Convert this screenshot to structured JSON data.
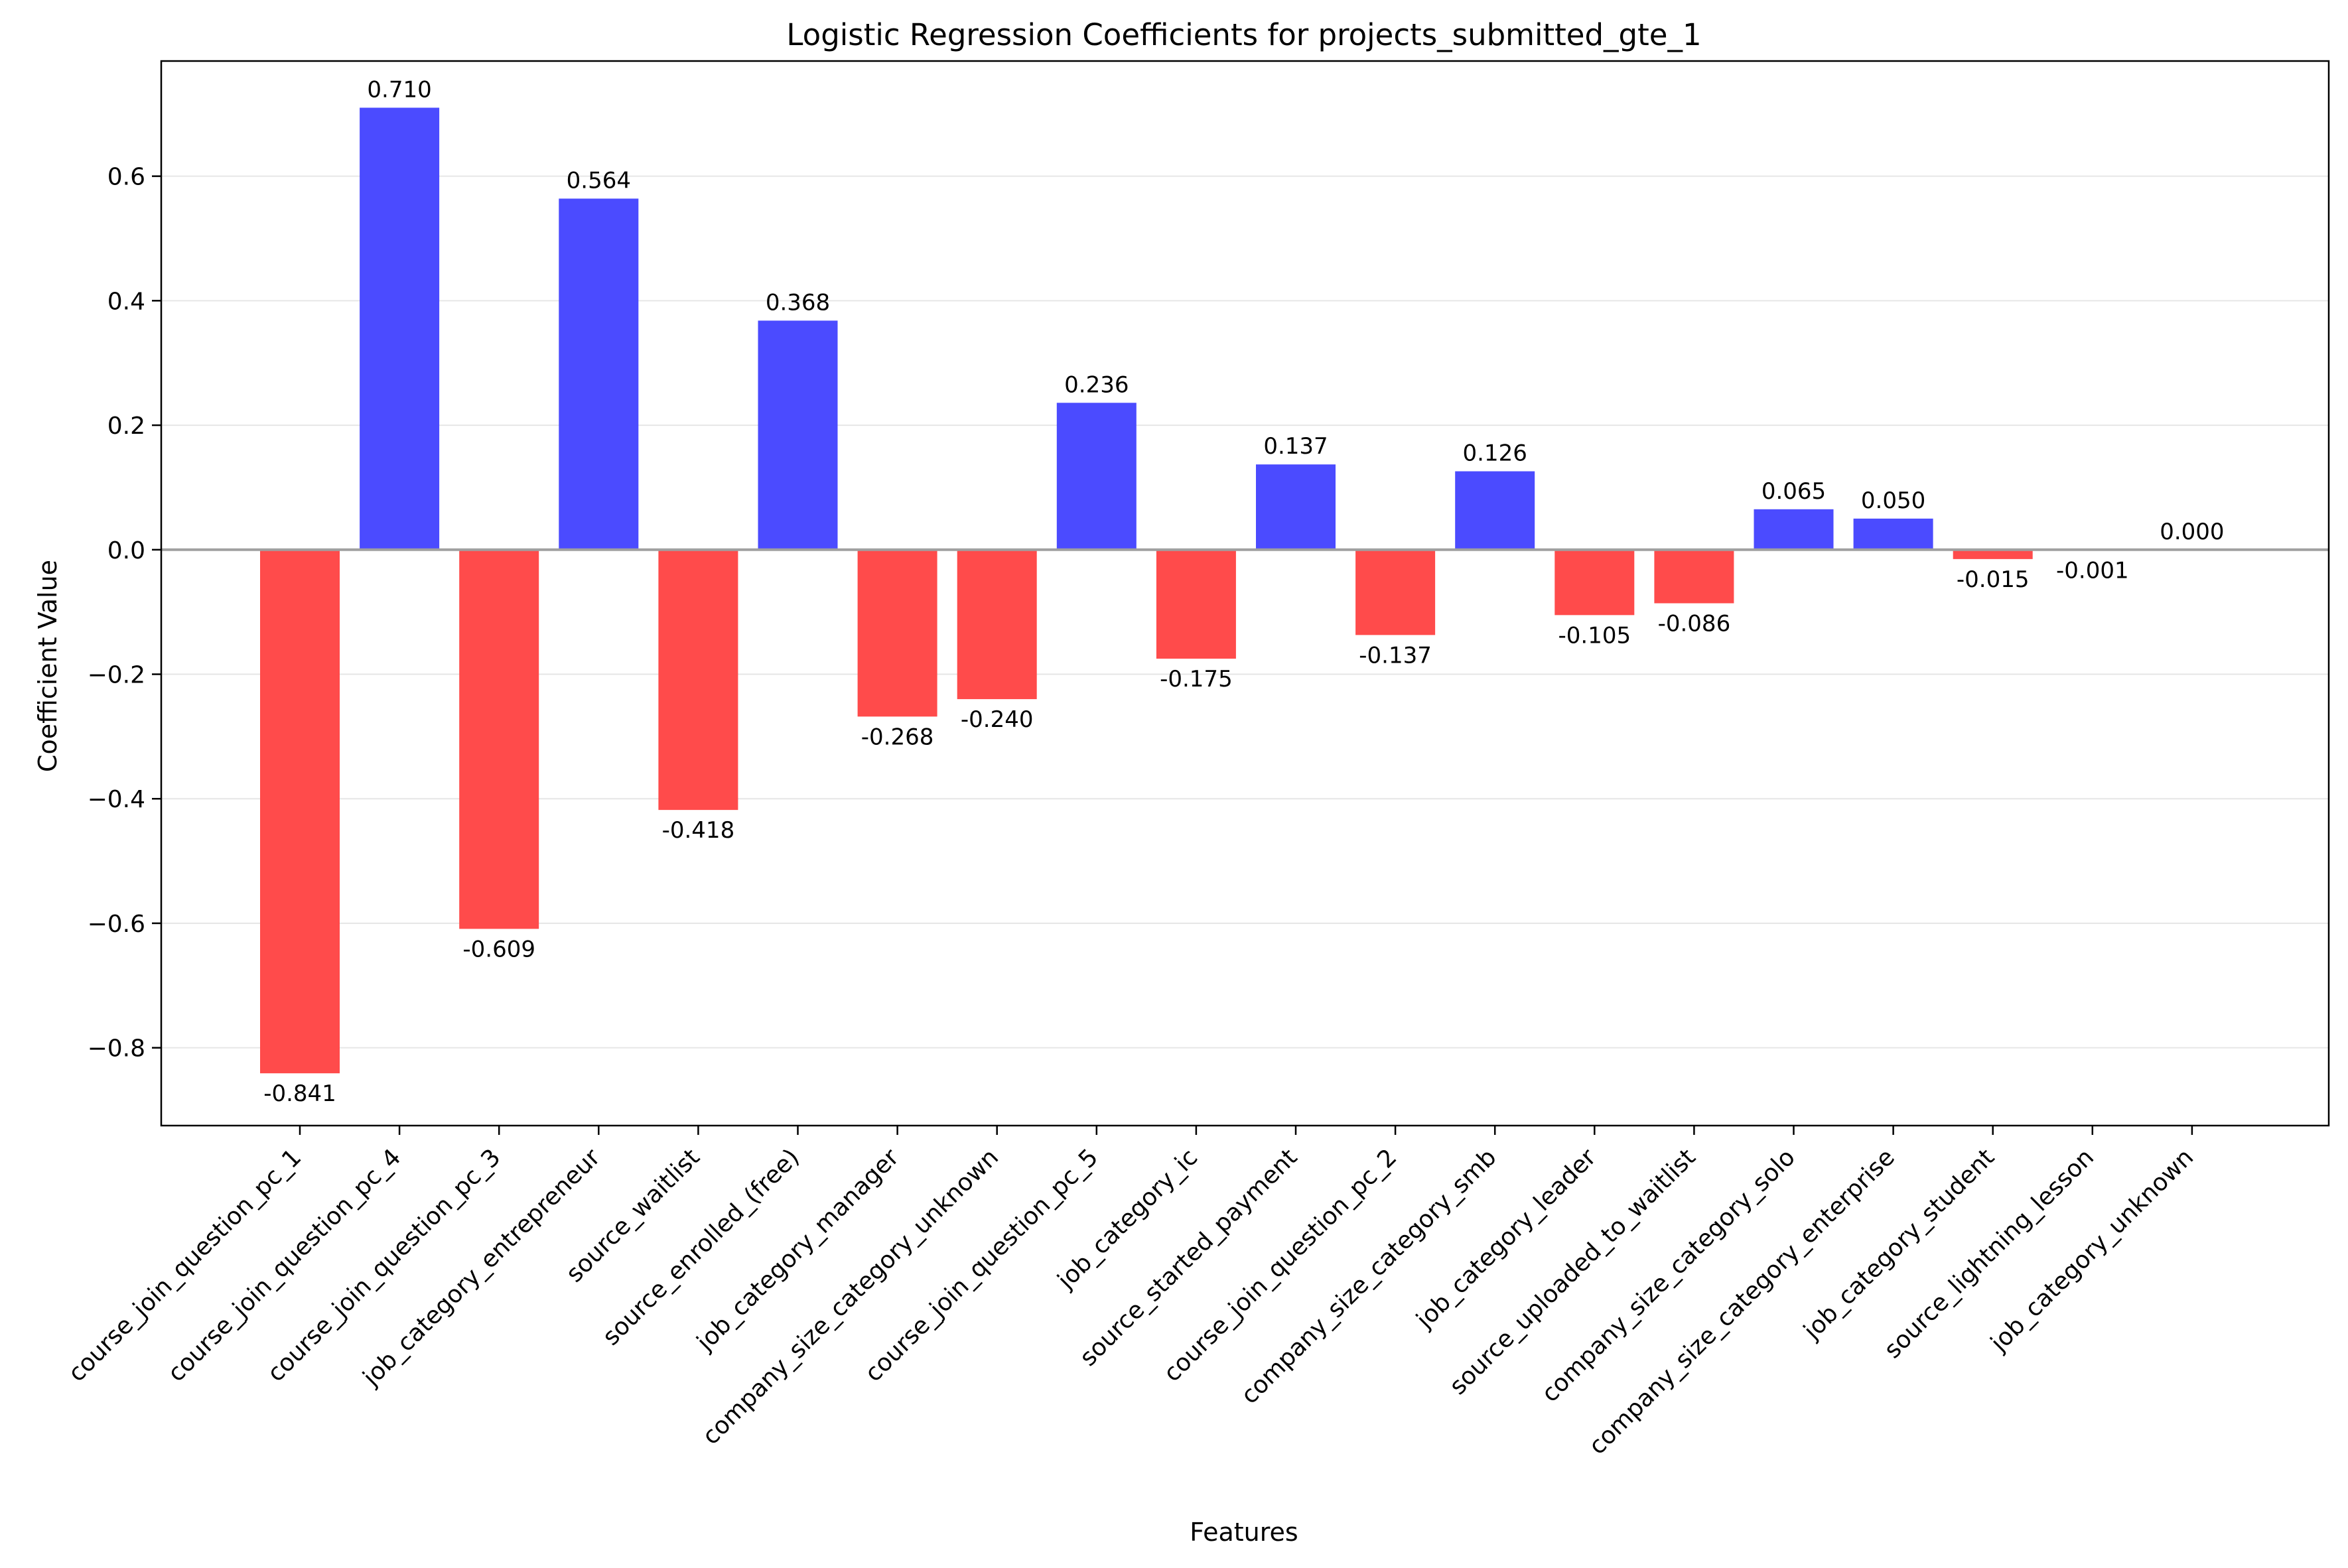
{
  "chart_data": {
    "type": "bar",
    "title": "Logistic Regression Coefficients for projects_submitted_gte_1",
    "xlabel": "Features",
    "ylabel": "Coefficient Value",
    "ylim": [
      -0.925,
      0.785
    ],
    "yticks": [
      -0.8,
      -0.6,
      -0.4,
      -0.2,
      0.0,
      0.2,
      0.4,
      0.6
    ],
    "ytick_labels": [
      "−0.8",
      "−0.6",
      "−0.4",
      "−0.2",
      "0.0",
      "0.2",
      "0.4",
      "0.6"
    ],
    "grid": "y",
    "colors": {
      "positive": "#4b4bff",
      "negative": "#ff4b4b",
      "zero_line": "#a0a0a0",
      "grid": "#e6e6e6"
    },
    "categories": [
      "course_join_question_pc_1",
      "course_join_question_pc_4",
      "course_join_question_pc_3",
      "job_category_entrepreneur",
      "source_waitlist",
      "source_enrolled_(free)",
      "job_category_manager",
      "company_size_category_unknown",
      "course_join_question_pc_5",
      "job_category_ic",
      "source_started_payment",
      "course_join_question_pc_2",
      "company_size_category_smb",
      "job_category_leader",
      "source_uploaded_to_waitlist",
      "company_size_category_solo",
      "company_size_category_enterprise",
      "job_category_student",
      "source_lightning_lesson",
      "job_category_unknown"
    ],
    "values": [
      -0.841,
      0.71,
      -0.609,
      0.564,
      -0.418,
      0.368,
      -0.268,
      -0.24,
      0.236,
      -0.175,
      0.137,
      -0.137,
      0.126,
      -0.105,
      -0.086,
      0.065,
      0.05,
      -0.015,
      -0.001,
      0.0
    ],
    "value_labels": [
      "-0.841",
      "0.710",
      "-0.609",
      "0.564",
      "-0.418",
      "0.368",
      "-0.268",
      "-0.240",
      "0.236",
      "-0.175",
      "0.137",
      "-0.137",
      "0.126",
      "-0.105",
      "-0.086",
      "0.065",
      "0.050",
      "-0.015",
      "-0.001",
      "0.000"
    ]
  }
}
